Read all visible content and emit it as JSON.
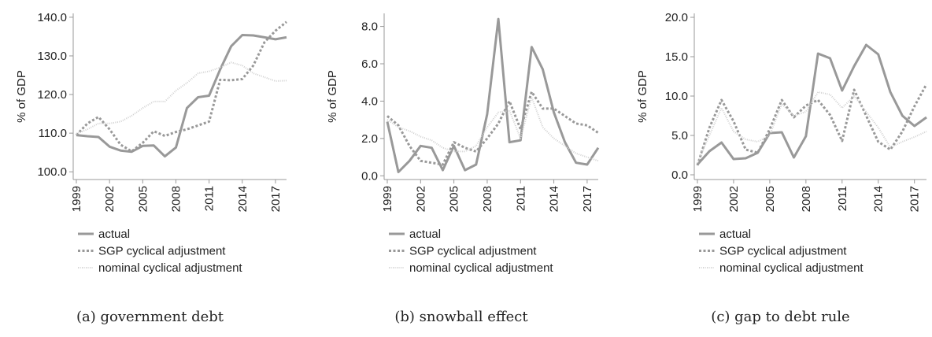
{
  "chart_data": [
    {
      "type": "line",
      "caption": "(a) government debt",
      "ylabel": "% of GDP",
      "x": [
        1999,
        2000,
        2001,
        2002,
        2003,
        2004,
        2005,
        2006,
        2007,
        2008,
        2009,
        2010,
        2011,
        2012,
        2013,
        2014,
        2015,
        2016,
        2017,
        2018
      ],
      "xlim": [
        1999,
        2018
      ],
      "xticks": [
        1999,
        2002,
        2005,
        2008,
        2011,
        2014,
        2017
      ],
      "ylim": [
        98,
        141
      ],
      "yticks": [
        {
          "value": 100,
          "label": "100.0"
        },
        {
          "value": 110,
          "label": "110.0"
        },
        {
          "value": 120,
          "label": "120.0"
        },
        {
          "value": 130,
          "label": "130.0"
        },
        {
          "value": 140,
          "label": "140.0"
        }
      ],
      "series": [
        {
          "name": "actual",
          "color": "#999999",
          "dash": "solid",
          "values": [
            109.5,
            109.2,
            109.0,
            106.5,
            105.5,
            105.2,
            106.7,
            106.8,
            104.0,
            106.3,
            116.5,
            119.3,
            119.7,
            126.5,
            132.5,
            135.4,
            135.3,
            134.8,
            134.3,
            134.8
          ]
        },
        {
          "name": "SGP cyclical adjustment",
          "color": "#999999",
          "dash": "dashed",
          "values": [
            109.5,
            112.5,
            114.2,
            111.0,
            107.0,
            105.3,
            107.5,
            110.5,
            109.3,
            110.3,
            111.0,
            112.0,
            113.0,
            123.8,
            123.7,
            124.0,
            127.5,
            133.5,
            136.5,
            138.8
          ]
        },
        {
          "name": "nominal cyclical adjustment",
          "color": "#d0d0d0",
          "dash": "dotted",
          "values": [
            109.8,
            111.0,
            112.5,
            112.5,
            113.0,
            114.5,
            116.5,
            118.2,
            118.2,
            121.0,
            123.0,
            125.5,
            126.0,
            127.0,
            128.3,
            127.5,
            125.5,
            124.5,
            123.5,
            123.6
          ]
        }
      ]
    },
    {
      "type": "line",
      "caption": "(b) snowball effect",
      "ylabel": "% of GDP",
      "x": [
        1999,
        2000,
        2001,
        2002,
        2003,
        2004,
        2005,
        2006,
        2007,
        2008,
        2009,
        2010,
        2011,
        2012,
        2013,
        2014,
        2015,
        2016,
        2017,
        2018
      ],
      "xlim": [
        1999,
        2018
      ],
      "xticks": [
        1999,
        2002,
        2005,
        2008,
        2011,
        2014,
        2017
      ],
      "ylim": [
        -0.2,
        8.7
      ],
      "yticks": [
        {
          "value": 0,
          "label": "0.0"
        },
        {
          "value": 2,
          "label": "2.0"
        },
        {
          "value": 4,
          "label": "4.0"
        },
        {
          "value": 6,
          "label": "6.0"
        },
        {
          "value": 8,
          "label": "8.0"
        }
      ],
      "series": [
        {
          "name": "actual",
          "color": "#999999",
          "dash": "solid",
          "values": [
            2.9,
            0.2,
            0.8,
            1.6,
            1.5,
            0.3,
            1.6,
            0.3,
            0.6,
            3.3,
            8.4,
            1.8,
            1.9,
            6.9,
            5.7,
            3.4,
            1.8,
            0.7,
            0.6,
            1.5
          ]
        },
        {
          "name": "SGP cyclical adjustment",
          "color": "#999999",
          "dash": "dashed",
          "values": [
            3.2,
            2.7,
            1.6,
            0.8,
            0.7,
            0.6,
            1.8,
            1.5,
            1.3,
            2.0,
            2.8,
            4.0,
            2.5,
            4.5,
            3.6,
            3.6,
            3.2,
            2.8,
            2.7,
            2.3
          ]
        },
        {
          "name": "nominal cyclical adjustment",
          "color": "#d0d0d0",
          "dash": "dotted",
          "values": [
            3.0,
            2.6,
            2.4,
            2.1,
            1.9,
            1.5,
            1.3,
            1.3,
            1.6,
            2.6,
            3.4,
            3.5,
            2.0,
            4.2,
            2.6,
            2.0,
            1.6,
            1.2,
            1.0,
            0.8
          ]
        }
      ]
    },
    {
      "type": "line",
      "caption": "(c) gap to debt rule",
      "ylabel": "% of GDP",
      "x": [
        1999,
        2000,
        2001,
        2002,
        2003,
        2004,
        2005,
        2006,
        2007,
        2008,
        2009,
        2010,
        2011,
        2012,
        2013,
        2014,
        2015,
        2016,
        2017,
        2018
      ],
      "xlim": [
        1999,
        2018
      ],
      "xticks": [
        1999,
        2002,
        2005,
        2008,
        2011,
        2014,
        2017
      ],
      "ylim": [
        -0.6,
        20.5
      ],
      "yticks": [
        {
          "value": 0,
          "label": "0.0"
        },
        {
          "value": 5,
          "label": "5.0"
        },
        {
          "value": 10,
          "label": "10.0"
        },
        {
          "value": 15,
          "label": "15.0"
        },
        {
          "value": 20,
          "label": "20.0"
        }
      ],
      "series": [
        {
          "name": "actual",
          "color": "#999999",
          "dash": "solid",
          "values": [
            1.3,
            3.0,
            4.1,
            2.0,
            2.1,
            2.8,
            5.3,
            5.4,
            2.2,
            4.9,
            15.4,
            14.8,
            10.7,
            13.8,
            16.5,
            15.3,
            10.5,
            7.5,
            6.2,
            7.3
          ]
        },
        {
          "name": "SGP cyclical adjustment",
          "color": "#999999",
          "dash": "dashed",
          "values": [
            1.2,
            6.0,
            9.5,
            6.8,
            3.2,
            2.8,
            5.8,
            9.5,
            7.3,
            8.8,
            9.5,
            7.6,
            4.3,
            10.8,
            7.5,
            4.2,
            3.2,
            5.5,
            8.7,
            11.5
          ]
        },
        {
          "name": "nominal cyclical adjustment",
          "color": "#d0d0d0",
          "dash": "dotted",
          "values": [
            1.5,
            5.0,
            8.5,
            5.5,
            4.5,
            4.2,
            5.0,
            9.0,
            7.5,
            8.0,
            10.5,
            10.2,
            8.5,
            10.0,
            8.0,
            6.0,
            3.5,
            4.2,
            4.8,
            5.5
          ]
        }
      ]
    }
  ]
}
